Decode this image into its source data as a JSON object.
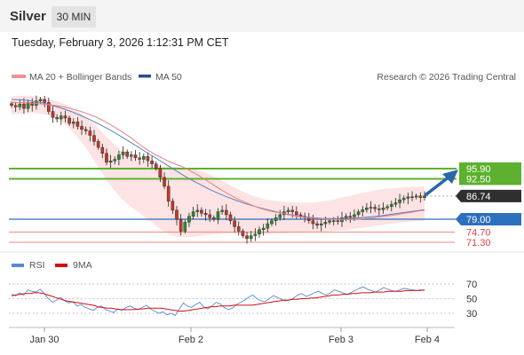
{
  "header": {
    "symbol": "Silver",
    "timeframe": "30 MIN"
  },
  "datetime": "Tuesday, February 3, 2026 1:12:31 PM CET",
  "legend": {
    "ma20": "MA 20 + Bollinger Bands",
    "ma50": "MA 50",
    "credit": "Research © 2026 Trading Central",
    "rsi": "RSI",
    "rsi_ma": "9MA"
  },
  "colors": {
    "candle_up": "#2e8b2e",
    "candle_down": "#c0392b",
    "ma20": "#e88080",
    "ma50": "#5a7fbf",
    "bollinger_fill": "#fde0e0",
    "resistance": "#5db12f",
    "support_blue": "#2c6fbf",
    "support_red": "#f08a80",
    "price_label": "#2f2f2f",
    "arrow": "#2a66a8",
    "rsi": "#5a88d8",
    "rsi_ma": "#d01010"
  },
  "chart_data": {
    "type": "candlestick",
    "x_labels": [
      "Jan 30",
      "Feb 2",
      "Feb 3",
      "Feb 4"
    ],
    "y_range": [
      69,
      101
    ],
    "levels": [
      {
        "label": "95.90",
        "value": 95.9,
        "kind": "resistance"
      },
      {
        "label": "92.50",
        "value": 92.5,
        "kind": "resistance"
      },
      {
        "label": "86.74",
        "value": 86.74,
        "kind": "last-price"
      },
      {
        "label": "79.00",
        "value": 79.0,
        "kind": "support-pivot"
      },
      {
        "label": "74.70",
        "value": 74.7,
        "kind": "support"
      },
      {
        "label": "71.30",
        "value": 71.3,
        "kind": "support"
      }
    ],
    "close_series": [
      117,
      116.5,
      117.5,
      116,
      118,
      117,
      118.5,
      119,
      118,
      115,
      113,
      112.5,
      113.5,
      112.8,
      111,
      111.5,
      110,
      109,
      108.5,
      107,
      105,
      103,
      101,
      98,
      98.5,
      99,
      100.5,
      101.5,
      100,
      100.5,
      99.5,
      99,
      100,
      98.5,
      97.5,
      96,
      93,
      90,
      85,
      82,
      79,
      75,
      78,
      80,
      81.5,
      82,
      81,
      80.5,
      79.5,
      79,
      81.5,
      82,
      80.5,
      78.5,
      76.5,
      75,
      73.5,
      72.5,
      73.5,
      74,
      75.5,
      76,
      77.5,
      78.5,
      79.5,
      80.5,
      81.5,
      82,
      81.5,
      80.5,
      80,
      79.5,
      78.5,
      77.5,
      77,
      77.5,
      78,
      78.5,
      78.5,
      78.2,
      79.5,
      80,
      79.8,
      80.5,
      81.5,
      82.2,
      82.8,
      83,
      82.5,
      82.2,
      82.8,
      83.2,
      84,
      84.5,
      85.5,
      86,
      86.5,
      86.4,
      86.8,
      86.2,
      86.74
    ],
    "ma20_series": [
      118,
      118,
      117.9,
      117.8,
      117.6,
      117.4,
      117.2,
      116.9,
      116.5,
      116,
      115.4,
      114.7,
      113.9,
      113,
      111.9,
      110.7,
      109.4,
      108,
      106.5,
      104.9,
      103.2,
      101.8,
      100.5,
      99.4,
      98.3,
      97.4,
      96.6,
      95.5,
      94.3,
      93,
      91.6,
      90.2,
      88.8,
      87.5,
      86.3,
      85.3,
      84.3,
      83.4,
      82.6,
      82,
      81.5,
      81.1,
      80.6,
      80.2,
      79.8,
      79.6,
      79.4,
      79.2,
      79.1,
      79,
      78.9,
      78.9,
      78.9,
      79,
      79.2,
      79.4,
      79.7,
      80,
      80.3,
      80.6,
      81,
      81.3,
      81.7,
      82
    ],
    "ma50_series": [
      119,
      118.9,
      118.6,
      118.2,
      117.6,
      116.8,
      115.9,
      114.9,
      113.7,
      112.4,
      111,
      109.5,
      107.9,
      106.2,
      104.4,
      102.6,
      100.8,
      99,
      97.2,
      95.4,
      93.6,
      92,
      90.5,
      89,
      87.7,
      86.5,
      85.4,
      84.4,
      83.5,
      82.7,
      82,
      81.3,
      80.7,
      80.2,
      79.8,
      79.5,
      79.3,
      79.2,
      79.2,
      79.3,
      79.4,
      79.6,
      79.9,
      80.2,
      80.6,
      81,
      81.4,
      81.8,
      82.2
    ],
    "bollinger_upper": [
      120,
      120.2,
      120.3,
      120.2,
      119.9,
      119.5,
      119,
      118.4,
      117.6,
      116.5,
      115.2,
      113.6,
      111.8,
      109.8,
      107.6,
      105.4,
      103.4,
      101.6,
      100.2,
      99.2,
      98.5,
      97.8,
      97.2,
      96.8,
      96.6,
      96.4,
      96.2,
      96,
      95.6,
      95,
      94.2,
      93.2,
      92,
      90.8,
      89.6,
      88.5,
      87.5,
      86.7,
      86,
      85.5,
      85.2,
      85,
      84.8,
      84.6,
      84.5,
      84.5,
      84.6,
      84.8,
      85.1,
      85.5,
      86,
      86.5,
      87,
      87.5,
      88,
      88.4,
      88.8,
      89.1,
      89.3,
      89.5,
      89.7,
      89.8,
      89.9,
      90
    ],
    "bollinger_lower": [
      114,
      114.2,
      114.4,
      114.5,
      114.4,
      114.1,
      113.5,
      112.5,
      111,
      109,
      106.6,
      103.8,
      100.6,
      97.2,
      93.8,
      90.6,
      87.8,
      85.4,
      83.5,
      81.9,
      80.3,
      78.6,
      76.8,
      75.2,
      74,
      73.3,
      73,
      73,
      73.2,
      73.5,
      73.8,
      74,
      74.2,
      74.3,
      74.3,
      74.2,
      74.1,
      74,
      74,
      74,
      74.1,
      74.2,
      74.3,
      74.4,
      74.5,
      74.6,
      74.7,
      74.8,
      74.9,
      75,
      75.2,
      75.4,
      75.7,
      76,
      76.3,
      76.6,
      76.9,
      77.2,
      77.5,
      77.8,
      78,
      78.2,
      78.4,
      78.5
    ],
    "rsi": {
      "y_ticks": [
        "70",
        "50",
        "30"
      ],
      "y_range": [
        20,
        80
      ],
      "series": [
        56,
        54,
        58,
        55,
        62,
        60,
        59,
        63,
        57,
        50,
        45,
        48,
        52,
        47,
        44,
        46,
        40,
        42,
        38,
        36,
        34,
        38,
        40,
        35,
        33,
        31,
        36,
        34,
        38,
        40,
        37,
        35,
        38,
        41,
        36,
        33,
        30,
        32,
        28,
        30,
        27,
        36,
        44,
        40,
        38,
        42,
        45,
        39,
        36,
        40,
        45,
        43,
        38,
        35,
        37,
        42,
        45,
        48,
        52,
        55,
        50,
        47,
        46,
        50,
        54,
        52,
        49,
        47,
        48,
        51,
        55,
        57,
        53,
        55,
        58,
        60,
        57,
        55,
        58,
        62,
        60,
        58,
        56,
        58,
        61,
        64,
        66,
        63,
        61,
        59,
        62,
        65,
        63,
        61,
        60,
        62,
        64,
        63,
        62,
        61,
        62,
        61
      ],
      "ma_series": [
        54,
        55,
        56,
        57,
        57,
        58,
        58,
        57,
        55,
        53,
        51,
        49,
        47,
        46,
        45,
        44,
        43,
        42,
        41,
        39,
        38,
        37,
        37,
        36,
        35,
        35,
        35,
        35,
        36,
        36,
        37,
        37,
        37,
        37,
        36,
        35,
        34,
        33,
        33,
        34,
        35,
        36,
        37,
        38,
        39,
        39,
        40,
        40,
        40,
        41,
        41,
        41,
        41,
        41,
        42,
        43,
        44,
        45,
        46,
        47,
        48,
        48,
        49,
        49,
        50,
        50,
        51,
        51,
        52,
        53,
        54,
        55,
        55,
        56,
        56,
        57,
        57,
        58,
        58,
        58,
        59,
        59,
        59,
        60,
        60,
        60,
        60,
        61,
        61,
        61,
        61,
        62
      ]
    }
  }
}
